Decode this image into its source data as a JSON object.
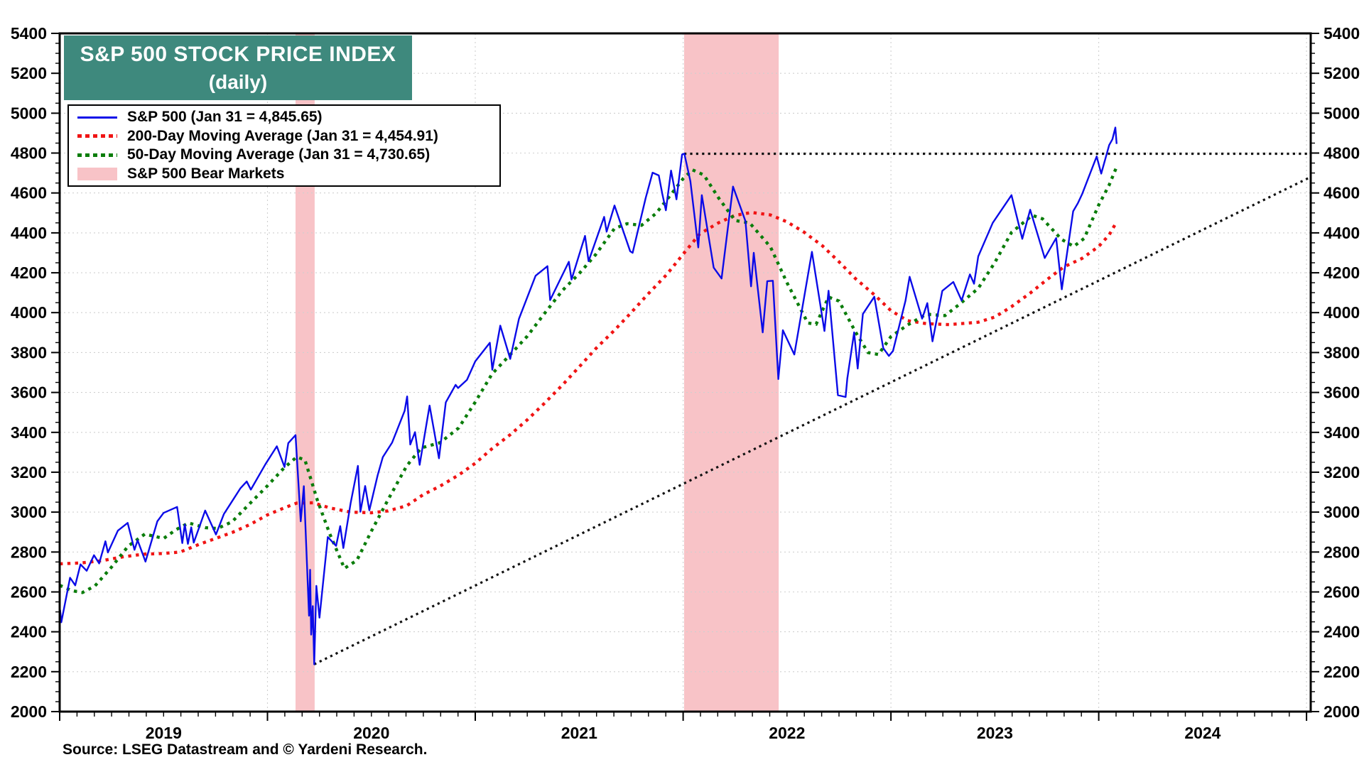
{
  "header": {
    "title_line1": "S&P 500 STOCK PRICE INDEX",
    "title_line2": "(daily)"
  },
  "source": {
    "text": "Source: LSEG Datastream and © Yardeni Research."
  },
  "colors": {
    "title_teal": "#3E897D",
    "sp500_blue": "#0B0BE8",
    "ma200_red": "#F01414",
    "ma50_green": "#0B7D0B",
    "bear_pink": "#F8C3C7",
    "trend_black": "#111111",
    "grid_gray": "#CFCFCF"
  },
  "chart_data": {
    "type": "line",
    "title": "S&P 500 STOCK PRICE INDEX",
    "subtitle": "(daily)",
    "xlabel": "",
    "ylabel": "",
    "xlim": [
      2019.0,
      2025.02
    ],
    "ylim": [
      2000,
      5400
    ],
    "y_major_step": 200,
    "y_minor_step": 50,
    "x_year_labels": [
      "2019",
      "2020",
      "2021",
      "2022",
      "2023",
      "2024"
    ],
    "x_minor_tick": "monthly",
    "grid": {
      "horizontal_step": 200,
      "vertical": "yearly",
      "style": "light-dotted"
    },
    "legend_position": "top-left",
    "bear_markets": {
      "legend_label": "S&P 500 Bear Markets",
      "bands": [
        [
          2020.135,
          2020.227
        ],
        [
          2022.005,
          2022.46
        ]
      ]
    },
    "reference_lines": [
      {
        "name": "prior-peak-horizontal",
        "value": 4796.56,
        "x": [
          2022.005,
          2025.02
        ]
      },
      {
        "name": "uptrend-diagonal",
        "points": [
          [
            2020.225,
            2237
          ],
          [
            2025.02,
            4680
          ]
        ]
      }
    ],
    "series": [
      {
        "name": "sp500",
        "legend_label": "S&P 500 (Jan 31 = 4,845.65)",
        "last_value": 4845.65,
        "style": "solid",
        "points": [
          [
            2019.002,
            2510
          ],
          [
            2019.008,
            2448
          ],
          [
            2019.05,
            2671
          ],
          [
            2019.075,
            2633
          ],
          [
            2019.1,
            2738
          ],
          [
            2019.13,
            2706
          ],
          [
            2019.165,
            2784
          ],
          [
            2019.19,
            2743
          ],
          [
            2019.22,
            2854
          ],
          [
            2019.232,
            2798
          ],
          [
            2019.28,
            2907
          ],
          [
            2019.327,
            2946
          ],
          [
            2019.36,
            2811
          ],
          [
            2019.375,
            2859
          ],
          [
            2019.413,
            2752
          ],
          [
            2019.47,
            2954
          ],
          [
            2019.5,
            2996
          ],
          [
            2019.565,
            3026
          ],
          [
            2019.59,
            2845
          ],
          [
            2019.602,
            2938
          ],
          [
            2019.617,
            2841
          ],
          [
            2019.633,
            2924
          ],
          [
            2019.645,
            2847
          ],
          [
            2019.7,
            3008
          ],
          [
            2019.752,
            2888
          ],
          [
            2019.79,
            2990
          ],
          [
            2019.82,
            3039
          ],
          [
            2019.87,
            3120
          ],
          [
            2019.9,
            3154
          ],
          [
            2019.92,
            3113
          ],
          [
            2019.99,
            3240
          ],
          [
            2020.045,
            3330
          ],
          [
            2020.082,
            3226
          ],
          [
            2020.1,
            3346
          ],
          [
            2020.135,
            3386
          ],
          [
            2020.16,
            2954
          ],
          [
            2020.175,
            3130
          ],
          [
            2020.2,
            2481
          ],
          [
            2020.205,
            2711
          ],
          [
            2020.21,
            2386
          ],
          [
            2020.218,
            2529
          ],
          [
            2020.225,
            2237
          ],
          [
            2020.235,
            2630
          ],
          [
            2020.25,
            2471
          ],
          [
            2020.29,
            2875
          ],
          [
            2020.33,
            2831
          ],
          [
            2020.35,
            2930
          ],
          [
            2020.365,
            2820
          ],
          [
            2020.4,
            3044
          ],
          [
            2020.435,
            3232
          ],
          [
            2020.447,
            3002
          ],
          [
            2020.47,
            3131
          ],
          [
            2020.49,
            3009
          ],
          [
            2020.53,
            3185
          ],
          [
            2020.555,
            3276
          ],
          [
            2020.6,
            3349
          ],
          [
            2020.66,
            3508
          ],
          [
            2020.672,
            3580
          ],
          [
            2020.687,
            3339
          ],
          [
            2020.71,
            3401
          ],
          [
            2020.732,
            3237
          ],
          [
            2020.78,
            3534
          ],
          [
            2020.825,
            3270
          ],
          [
            2020.858,
            3550
          ],
          [
            2020.905,
            3638
          ],
          [
            2020.917,
            3622
          ],
          [
            2020.96,
            3663
          ],
          [
            2021.0,
            3756
          ],
          [
            2021.07,
            3849
          ],
          [
            2021.082,
            3714
          ],
          [
            2021.12,
            3935
          ],
          [
            2021.168,
            3768
          ],
          [
            2021.21,
            3969
          ],
          [
            2021.29,
            4185
          ],
          [
            2021.347,
            4233
          ],
          [
            2021.36,
            4063
          ],
          [
            2021.45,
            4255
          ],
          [
            2021.463,
            4166
          ],
          [
            2021.528,
            4385
          ],
          [
            2021.545,
            4258
          ],
          [
            2021.62,
            4480
          ],
          [
            2021.632,
            4406
          ],
          [
            2021.67,
            4537
          ],
          [
            2021.745,
            4308
          ],
          [
            2021.757,
            4300
          ],
          [
            2021.82,
            4575
          ],
          [
            2021.853,
            4702
          ],
          [
            2021.883,
            4688
          ],
          [
            2021.9,
            4595
          ],
          [
            2021.917,
            4513
          ],
          [
            2021.942,
            4712
          ],
          [
            2021.968,
            4568
          ],
          [
            2021.995,
            4793
          ],
          [
            2022.006,
            4797
          ],
          [
            2022.035,
            4659
          ],
          [
            2022.073,
            4327
          ],
          [
            2022.09,
            4589
          ],
          [
            2022.147,
            4226
          ],
          [
            2022.185,
            4171
          ],
          [
            2022.24,
            4632
          ],
          [
            2022.3,
            4459
          ],
          [
            2022.327,
            4132
          ],
          [
            2022.34,
            4300
          ],
          [
            2022.383,
            3901
          ],
          [
            2022.405,
            4158
          ],
          [
            2022.432,
            4160
          ],
          [
            2022.458,
            3667
          ],
          [
            2022.48,
            3912
          ],
          [
            2022.535,
            3790
          ],
          [
            2022.62,
            4305
          ],
          [
            2022.68,
            3908
          ],
          [
            2022.7,
            4110
          ],
          [
            2022.745,
            3586
          ],
          [
            2022.782,
            3577
          ],
          [
            2022.79,
            3670
          ],
          [
            2022.823,
            3901
          ],
          [
            2022.84,
            3720
          ],
          [
            2022.865,
            3993
          ],
          [
            2022.92,
            4080
          ],
          [
            2022.963,
            3822
          ],
          [
            2022.99,
            3783
          ],
          [
            2023.01,
            3808
          ],
          [
            2023.07,
            4060
          ],
          [
            2023.09,
            4180
          ],
          [
            2023.15,
            3970
          ],
          [
            2023.175,
            4048
          ],
          [
            2023.2,
            3856
          ],
          [
            2023.247,
            4109
          ],
          [
            2023.3,
            4154
          ],
          [
            2023.34,
            4061
          ],
          [
            2023.38,
            4192
          ],
          [
            2023.4,
            4145
          ],
          [
            2023.42,
            4282
          ],
          [
            2023.49,
            4450
          ],
          [
            2023.58,
            4589
          ],
          [
            2023.632,
            4370
          ],
          [
            2023.67,
            4516
          ],
          [
            2023.74,
            4274
          ],
          [
            2023.795,
            4374
          ],
          [
            2023.822,
            4117
          ],
          [
            2023.877,
            4508
          ],
          [
            2023.9,
            4550
          ],
          [
            2023.92,
            4594
          ],
          [
            2023.99,
            4783
          ],
          [
            2024.012,
            4697
          ],
          [
            2024.05,
            4840
          ],
          [
            2024.066,
            4869
          ],
          [
            2024.08,
            4928
          ],
          [
            2024.086,
            4846
          ]
        ]
      },
      {
        "name": "ma200",
        "legend_label": "200-Day Moving Average (Jan 31 = 4,454.91)",
        "last_value": 4454.91,
        "style": "dotted",
        "points": [
          [
            2019.0,
            2741
          ],
          [
            2019.1,
            2745
          ],
          [
            2019.2,
            2756
          ],
          [
            2019.3,
            2775
          ],
          [
            2019.4,
            2789
          ],
          [
            2019.5,
            2793
          ],
          [
            2019.58,
            2800
          ],
          [
            2019.67,
            2838
          ],
          [
            2019.75,
            2868
          ],
          [
            2019.83,
            2898
          ],
          [
            2019.92,
            2940
          ],
          [
            2020.0,
            2986
          ],
          [
            2020.08,
            3021
          ],
          [
            2020.14,
            3045
          ],
          [
            2020.22,
            3047
          ],
          [
            2020.3,
            3021
          ],
          [
            2020.4,
            3000
          ],
          [
            2020.5,
            2997
          ],
          [
            2020.58,
            3006
          ],
          [
            2020.67,
            3032
          ],
          [
            2020.75,
            3088
          ],
          [
            2020.83,
            3130
          ],
          [
            2020.92,
            3186
          ],
          [
            2021.0,
            3245
          ],
          [
            2021.08,
            3318
          ],
          [
            2021.17,
            3390
          ],
          [
            2021.25,
            3463
          ],
          [
            2021.33,
            3543
          ],
          [
            2021.42,
            3638
          ],
          [
            2021.5,
            3728
          ],
          [
            2021.58,
            3820
          ],
          [
            2021.67,
            3912
          ],
          [
            2021.75,
            4000
          ],
          [
            2021.83,
            4092
          ],
          [
            2021.92,
            4190
          ],
          [
            2022.0,
            4293
          ],
          [
            2022.08,
            4395
          ],
          [
            2022.17,
            4450
          ],
          [
            2022.25,
            4488
          ],
          [
            2022.33,
            4502
          ],
          [
            2022.42,
            4490
          ],
          [
            2022.5,
            4455
          ],
          [
            2022.58,
            4405
          ],
          [
            2022.67,
            4335
          ],
          [
            2022.75,
            4255
          ],
          [
            2022.83,
            4170
          ],
          [
            2022.92,
            4090
          ],
          [
            2023.0,
            4010
          ],
          [
            2023.08,
            3960
          ],
          [
            2023.17,
            3945
          ],
          [
            2023.28,
            3940
          ],
          [
            2023.42,
            3952
          ],
          [
            2023.5,
            3978
          ],
          [
            2023.58,
            4030
          ],
          [
            2023.67,
            4098
          ],
          [
            2023.75,
            4165
          ],
          [
            2023.83,
            4228
          ],
          [
            2023.92,
            4272
          ],
          [
            2024.0,
            4332
          ],
          [
            2024.05,
            4390
          ],
          [
            2024.086,
            4455
          ]
        ]
      },
      {
        "name": "ma50",
        "legend_label": "50-Day Moving Average (Jan 31 = 4,730.65)",
        "last_value": 4730.65,
        "style": "dotted",
        "points": [
          [
            2019.0,
            2633
          ],
          [
            2019.06,
            2606
          ],
          [
            2019.11,
            2597
          ],
          [
            2019.17,
            2630
          ],
          [
            2019.25,
            2725
          ],
          [
            2019.33,
            2830
          ],
          [
            2019.41,
            2890
          ],
          [
            2019.5,
            2868
          ],
          [
            2019.56,
            2912
          ],
          [
            2019.62,
            2946
          ],
          [
            2019.7,
            2922
          ],
          [
            2019.76,
            2918
          ],
          [
            2019.83,
            2952
          ],
          [
            2019.92,
            3048
          ],
          [
            2020.0,
            3132
          ],
          [
            2020.08,
            3222
          ],
          [
            2020.14,
            3276
          ],
          [
            2020.18,
            3262
          ],
          [
            2020.24,
            3060
          ],
          [
            2020.3,
            2890
          ],
          [
            2020.37,
            2718
          ],
          [
            2020.43,
            2758
          ],
          [
            2020.5,
            2905
          ],
          [
            2020.58,
            3062
          ],
          [
            2020.67,
            3232
          ],
          [
            2020.74,
            3322
          ],
          [
            2020.83,
            3348
          ],
          [
            2020.92,
            3422
          ],
          [
            2021.0,
            3552
          ],
          [
            2021.08,
            3692
          ],
          [
            2021.17,
            3792
          ],
          [
            2021.25,
            3882
          ],
          [
            2021.33,
            3992
          ],
          [
            2021.42,
            4112
          ],
          [
            2021.5,
            4196
          ],
          [
            2021.58,
            4292
          ],
          [
            2021.67,
            4422
          ],
          [
            2021.73,
            4446
          ],
          [
            2021.8,
            4438
          ],
          [
            2021.87,
            4498
          ],
          [
            2021.94,
            4590
          ],
          [
            2022.0,
            4672
          ],
          [
            2022.045,
            4716
          ],
          [
            2022.1,
            4690
          ],
          [
            2022.17,
            4576
          ],
          [
            2022.25,
            4462
          ],
          [
            2022.32,
            4450
          ],
          [
            2022.42,
            4330
          ],
          [
            2022.5,
            4150
          ],
          [
            2022.6,
            3948
          ],
          [
            2022.64,
            3942
          ],
          [
            2022.7,
            4078
          ],
          [
            2022.75,
            4058
          ],
          [
            2022.83,
            3902
          ],
          [
            2022.89,
            3800
          ],
          [
            2022.94,
            3790
          ],
          [
            2023.0,
            3880
          ],
          [
            2023.08,
            3938
          ],
          [
            2023.17,
            3992
          ],
          [
            2023.26,
            3985
          ],
          [
            2023.33,
            4042
          ],
          [
            2023.42,
            4122
          ],
          [
            2023.5,
            4252
          ],
          [
            2023.58,
            4402
          ],
          [
            2023.68,
            4488
          ],
          [
            2023.73,
            4470
          ],
          [
            2023.82,
            4368
          ],
          [
            2023.88,
            4332
          ],
          [
            2023.93,
            4372
          ],
          [
            2024.0,
            4540
          ],
          [
            2024.05,
            4640
          ],
          [
            2024.086,
            4731
          ]
        ]
      }
    ]
  }
}
